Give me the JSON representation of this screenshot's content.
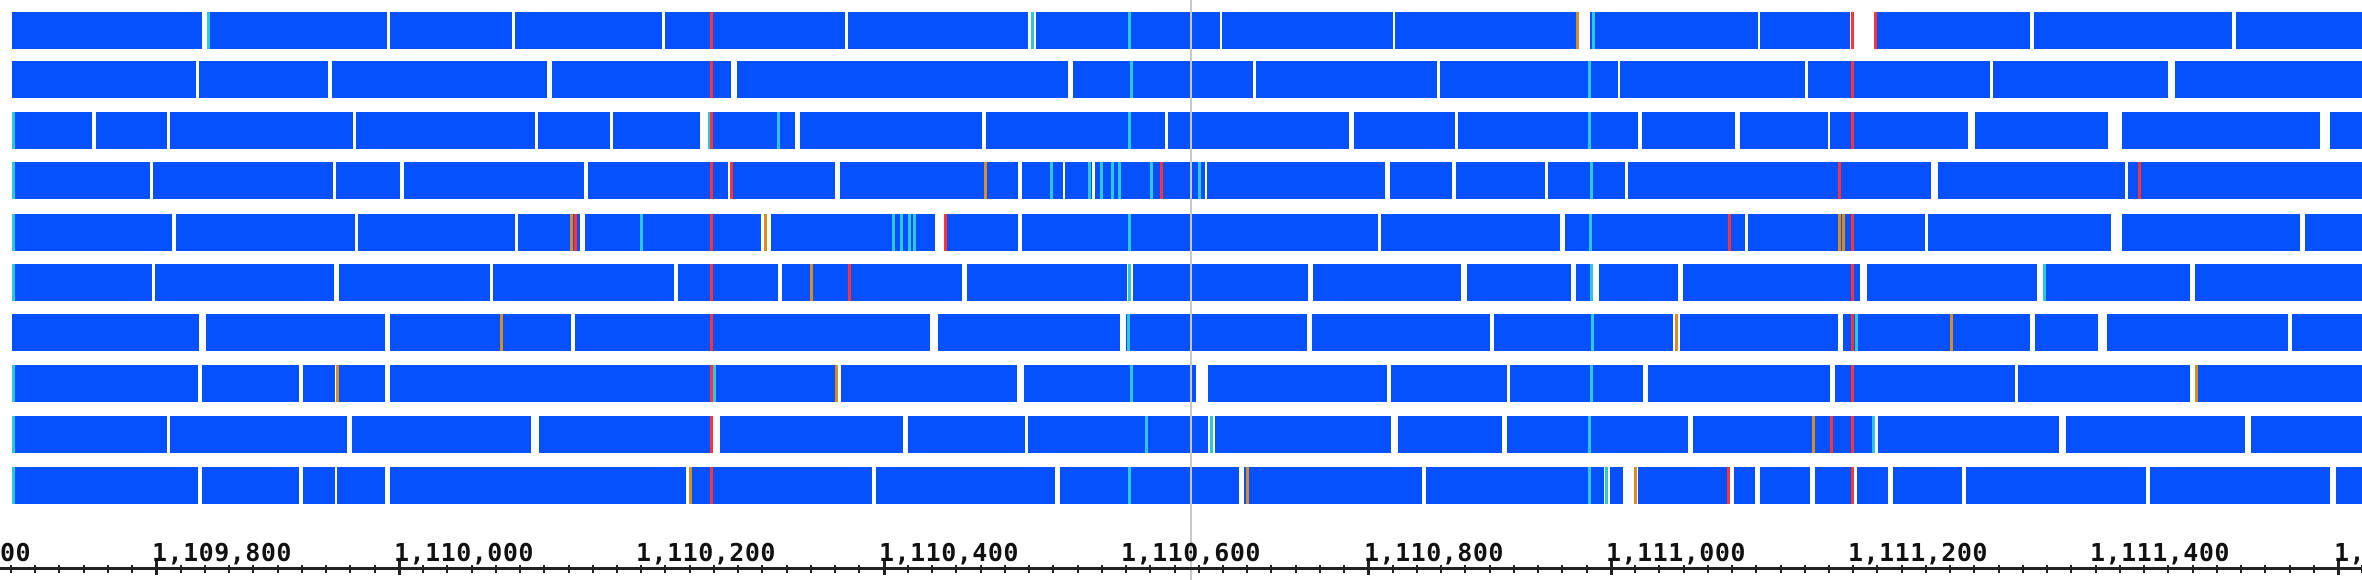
{
  "viewer": {
    "read_color": "#0550ff",
    "mismatch_colors": {
      "G": "#d98c1f",
      "C": "#2ec7d9",
      "T": "#ff3333",
      "A": "#1fd64a"
    }
  },
  "ruler": {
    "ticks": [
      {
        "label": "00"
      },
      {
        "label": "1,109,800"
      },
      {
        "label": "1,110,000"
      },
      {
        "label": "1,110,200"
      },
      {
        "label": "1,110,400"
      },
      {
        "label": "1,110,600"
      },
      {
        "label": "1,110,800"
      },
      {
        "label": "1,111,000"
      },
      {
        "label": "1,111,200"
      },
      {
        "label": "1,111,400"
      },
      {
        "label": "1,"
      }
    ]
  }
}
